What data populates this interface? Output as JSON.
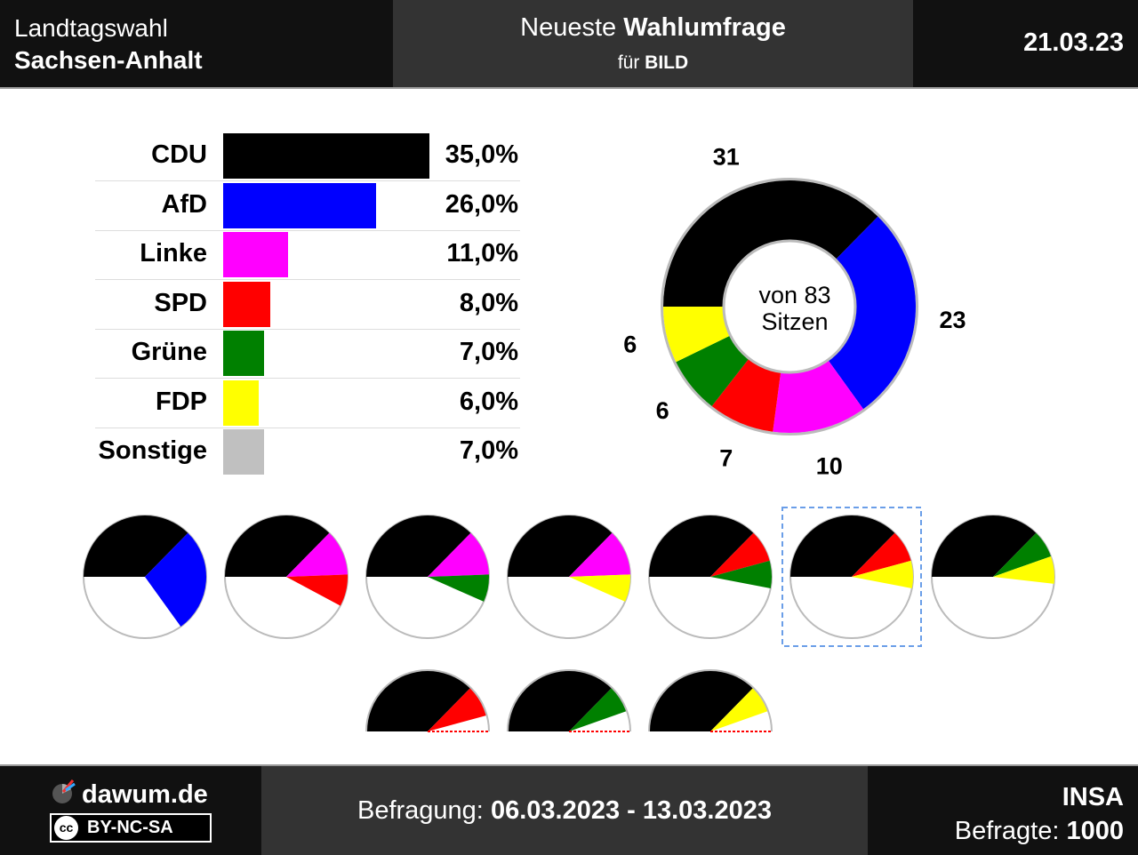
{
  "header": {
    "title_line1": "Landtagswahl",
    "title_line2": "Sachsen-Anhalt",
    "poll_label_plain": "Neueste ",
    "poll_label_bold": "Wahlumfrage",
    "client_prefix": "für ",
    "client": "BILD",
    "date": "21.03.23"
  },
  "footer": {
    "site": "dawum.de",
    "license": "BY-NC-SA",
    "license_icon": "cc-icon",
    "survey_label": "Befragung: ",
    "survey_period": "06.03.2023 - 13.03.2023",
    "institute": "INSA",
    "respondents_label": "Befragte: ",
    "respondents": "1000"
  },
  "chart_data": [
    {
      "type": "bar",
      "orientation": "horizontal",
      "categories": [
        "CDU",
        "AfD",
        "Linke",
        "SPD",
        "Grüne",
        "FDP",
        "Sonstige"
      ],
      "values": [
        35.0,
        26.0,
        11.0,
        8.0,
        7.0,
        6.0,
        7.0
      ],
      "value_labels": [
        "35,0%",
        "26,0%",
        "11,0%",
        "8,0%",
        "7,0%",
        "6,0%",
        "7,0%"
      ],
      "colors": [
        "#000000",
        "#0000ff",
        "#ff00ff",
        "#ff0000",
        "#008000",
        "#ffff00",
        "#c0c0c0"
      ]
    },
    {
      "type": "pie",
      "subtype": "donut",
      "categories": [
        "CDU",
        "AfD",
        "Linke",
        "SPD",
        "Grüne",
        "FDP"
      ],
      "values": [
        31,
        23,
        10,
        7,
        6,
        6
      ],
      "value_labels": [
        "31",
        "23",
        "10",
        "7",
        "6",
        "6"
      ],
      "colors": [
        "#000000",
        "#0000ff",
        "#ff00ff",
        "#ff0000",
        "#008000",
        "#ffff00"
      ],
      "center_line1": "von 83",
      "center_line2": "Sitzen"
    },
    {
      "type": "pie",
      "subtype": "coalitions",
      "total": 83,
      "coalitions": [
        {
          "parties": [
            "CDU",
            "AfD"
          ],
          "seats": [
            31,
            23
          ],
          "colors": [
            "#000000",
            "#0000ff"
          ],
          "majority": true
        },
        {
          "parties": [
            "CDU",
            "Linke",
            "SPD"
          ],
          "seats": [
            31,
            10,
            7
          ],
          "colors": [
            "#000000",
            "#ff00ff",
            "#ff0000"
          ],
          "majority": true
        },
        {
          "parties": [
            "CDU",
            "Linke",
            "Grüne"
          ],
          "seats": [
            31,
            10,
            6
          ],
          "colors": [
            "#000000",
            "#ff00ff",
            "#008000"
          ],
          "majority": true
        },
        {
          "parties": [
            "CDU",
            "Linke",
            "FDP"
          ],
          "seats": [
            31,
            10,
            6
          ],
          "colors": [
            "#000000",
            "#ff00ff",
            "#ffff00"
          ],
          "majority": true
        },
        {
          "parties": [
            "CDU",
            "SPD",
            "Grüne"
          ],
          "seats": [
            31,
            7,
            6
          ],
          "colors": [
            "#000000",
            "#ff0000",
            "#008000"
          ],
          "majority": true
        },
        {
          "parties": [
            "CDU",
            "SPD",
            "FDP"
          ],
          "seats": [
            31,
            7,
            6
          ],
          "colors": [
            "#000000",
            "#ff0000",
            "#ffff00"
          ],
          "majority": true,
          "highlighted": true
        },
        {
          "parties": [
            "CDU",
            "Grüne",
            "FDP"
          ],
          "seats": [
            31,
            6,
            6
          ],
          "colors": [
            "#000000",
            "#008000",
            "#ffff00"
          ],
          "majority": true
        },
        {
          "parties": [
            "CDU",
            "SPD"
          ],
          "seats": [
            31,
            7
          ],
          "colors": [
            "#000000",
            "#ff0000"
          ],
          "majority": false
        },
        {
          "parties": [
            "CDU",
            "Grüne"
          ],
          "seats": [
            31,
            6
          ],
          "colors": [
            "#000000",
            "#008000"
          ],
          "majority": false
        },
        {
          "parties": [
            "CDU",
            "FDP"
          ],
          "seats": [
            31,
            6
          ],
          "colors": [
            "#000000",
            "#ffff00"
          ],
          "majority": false
        }
      ]
    }
  ]
}
